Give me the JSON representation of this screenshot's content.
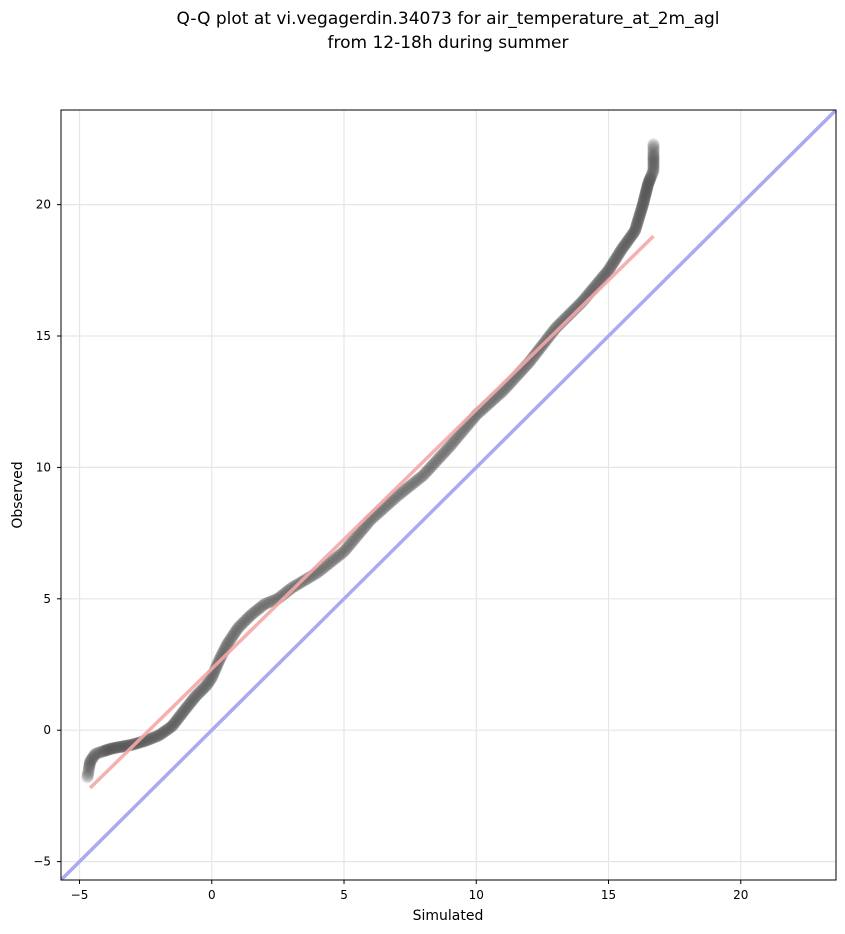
{
  "chart_data": {
    "type": "scatter",
    "title_lines": [
      "Q-Q plot at vi.vegagerdin.34073 for air_temperature_at_2m_agl",
      "from 12-18h during summer"
    ],
    "xlabel": "Simulated",
    "ylabel": "Observed",
    "xlim": [
      -5.7,
      23.6
    ],
    "ylim": [
      -5.7,
      23.6
    ],
    "xticks": [
      -5,
      0,
      5,
      10,
      15,
      20
    ],
    "yticks": [
      -5,
      0,
      5,
      10,
      15,
      20
    ],
    "xtick_labels": [
      "−5",
      "0",
      "5",
      "10",
      "15",
      "20"
    ],
    "ytick_labels": [
      "−5",
      "0",
      "5",
      "10",
      "15",
      "20"
    ],
    "grid": true,
    "identity_line_color": "#aaaaf0",
    "fit_line": {
      "x": [
        -4.6,
        16.7
      ],
      "y": [
        -2.2,
        18.8
      ],
      "color": "#f4a7a7"
    },
    "point_color": "#555555",
    "curve_knots": [
      [
        -4.7,
        -1.8
      ],
      [
        -4.6,
        -1.2
      ],
      [
        -4.4,
        -0.9
      ],
      [
        -3.8,
        -0.7
      ],
      [
        -3.0,
        -0.55
      ],
      [
        -2.5,
        -0.4
      ],
      [
        -2.0,
        -0.2
      ],
      [
        -1.5,
        0.15
      ],
      [
        -1.0,
        0.8
      ],
      [
        -0.6,
        1.3
      ],
      [
        -0.2,
        1.7
      ],
      [
        0.0,
        2.0
      ],
      [
        0.3,
        2.7
      ],
      [
        0.6,
        3.3
      ],
      [
        1.0,
        3.9
      ],
      [
        1.5,
        4.4
      ],
      [
        2.0,
        4.8
      ],
      [
        2.5,
        5.0
      ],
      [
        3.0,
        5.4
      ],
      [
        4.0,
        6.0
      ],
      [
        5.0,
        6.8
      ],
      [
        6.0,
        8.0
      ],
      [
        7.0,
        8.9
      ],
      [
        8.0,
        9.7
      ],
      [
        9.0,
        10.8
      ],
      [
        10.0,
        12.0
      ],
      [
        11.0,
        12.9
      ],
      [
        12.0,
        14.0
      ],
      [
        13.0,
        15.3
      ],
      [
        14.0,
        16.3
      ],
      [
        15.0,
        17.5
      ],
      [
        15.5,
        18.3
      ],
      [
        16.0,
        19.0
      ],
      [
        16.3,
        20.0
      ],
      [
        16.5,
        20.8
      ],
      [
        16.7,
        21.3
      ],
      [
        16.7,
        22.3
      ]
    ],
    "point_count": 420
  }
}
